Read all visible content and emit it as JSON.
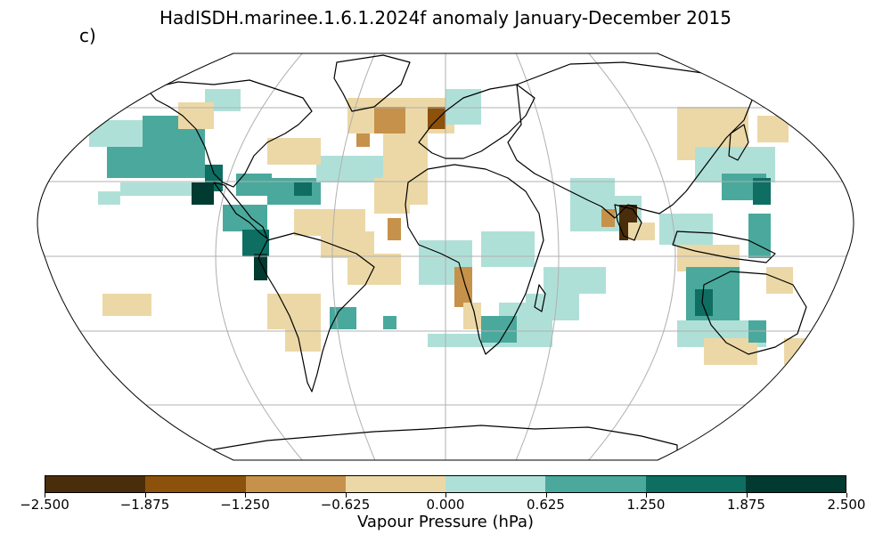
{
  "figure": {
    "title": "HadISDH.marinee.1.6.1.2024f anomaly January-December 2015",
    "panel_label": "c)"
  },
  "colorbar": {
    "label": "Vapour Pressure (hPa)",
    "ticks": [
      "−2.500",
      "−1.875",
      "−1.250",
      "−0.625",
      "0.000",
      "0.625",
      "1.250",
      "1.875",
      "2.500"
    ],
    "colors": [
      "#4a2d0b",
      "#8c510a",
      "#c6914a",
      "#ecd8a6",
      "#afe0d8",
      "#4aa99c",
      "#0e6e62",
      "#003a30"
    ]
  },
  "map": {
    "projection": "robinson",
    "gridlines": true,
    "land_color": "#ffffff",
    "coastline_color": "#000000",
    "grid_color": "#b0b0b0"
  }
}
